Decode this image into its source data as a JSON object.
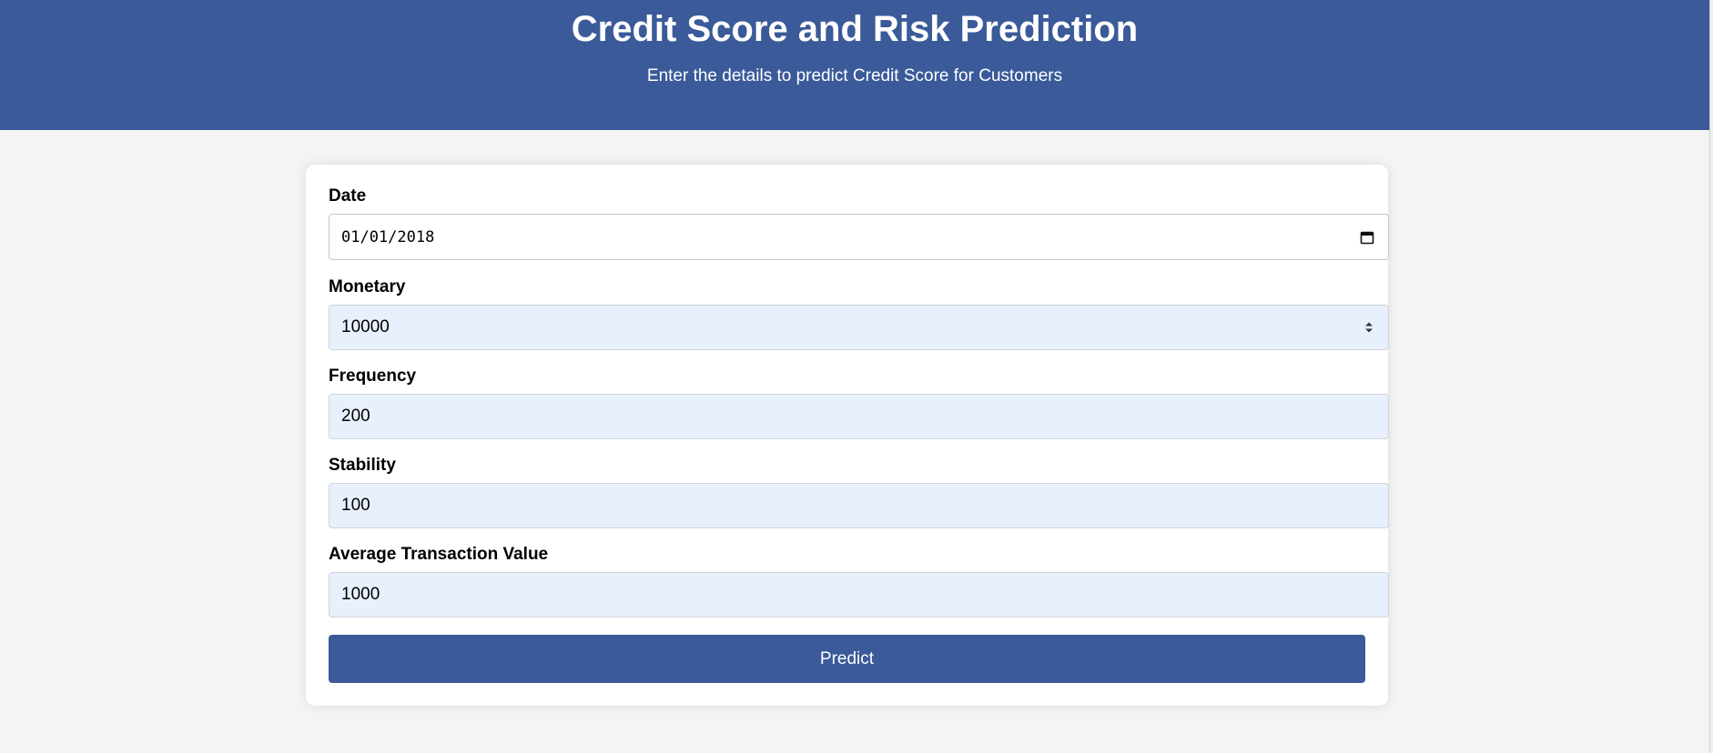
{
  "header": {
    "title": "Credit Score and Risk Prediction",
    "subtitle": "Enter the details to predict Credit Score for Customers"
  },
  "form": {
    "fields": [
      {
        "label": "Date",
        "value": "01/01/2018",
        "type": "date"
      },
      {
        "label": "Monetary",
        "value": "10000",
        "type": "number"
      },
      {
        "label": "Frequency",
        "value": "200",
        "type": "text"
      },
      {
        "label": "Stability",
        "value": "100",
        "type": "text"
      },
      {
        "label": "Average Transaction Value",
        "value": "1000",
        "type": "text"
      }
    ],
    "submit_label": "Predict"
  },
  "icons": {
    "date": "calendar-icon",
    "monetary": "spinner-icon"
  },
  "colors": {
    "header_bg": "#3a5a99",
    "button_bg": "#3a5a99",
    "input_autofill_bg": "#e8f0fd",
    "page_bg": "#f4f4f4"
  }
}
